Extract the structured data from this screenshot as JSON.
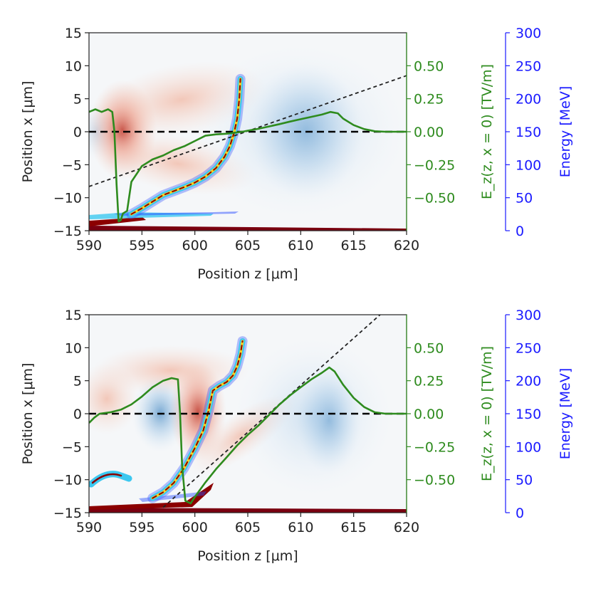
{
  "colors": {
    "green": "#2e8b1e",
    "blue": "#1a1aff",
    "black": "#000000",
    "field_red": "#e8755a",
    "field_blue": "#6fa8d6",
    "beam_red": "#8b0000",
    "beam_cyan": "#3cc8f0"
  },
  "chart_data": [
    {
      "type": "line",
      "panel": "top",
      "xlabel": "Position z [μm]",
      "ylabel": "Position x [μm]",
      "ylabel2": "E_z(z, x = 0) [TV/m]",
      "ylabel3": "Energy [MeV]",
      "xlim": [
        590,
        620
      ],
      "ylim": [
        -15,
        15
      ],
      "y2lim": [
        -0.75,
        0.75
      ],
      "y3lim": [
        0,
        300
      ],
      "xticks": [
        "590",
        "595",
        "600",
        "605",
        "610",
        "615",
        "620"
      ],
      "yticks": [
        "15",
        "10",
        "5",
        "0",
        "−5",
        "−10",
        "−15"
      ],
      "y2ticks": [
        "0.50",
        "0.25",
        "0.00",
        "−0.25",
        "−0.50"
      ],
      "y3ticks": [
        "300",
        "250",
        "200",
        "150",
        "100",
        "50",
        "0"
      ],
      "series": [
        {
          "name": "E_z(z, x=0)",
          "axis": "y2",
          "x": [
            590,
            590.6,
            591.2,
            591.8,
            592.2,
            592.4,
            592.6,
            592.8,
            593,
            593.2,
            593.6,
            594,
            595,
            596,
            597,
            598,
            599,
            600,
            601,
            602,
            603,
            604,
            604.5,
            605,
            606,
            607,
            608,
            609,
            610,
            611,
            612,
            612.8,
            613.5,
            614,
            615,
            616,
            617,
            618,
            619,
            620
          ],
          "values": [
            0.15,
            0.17,
            0.15,
            0.17,
            0.15,
            0.0,
            -0.4,
            -0.68,
            -0.67,
            -0.62,
            -0.6,
            -0.38,
            -0.26,
            -0.21,
            -0.18,
            -0.14,
            -0.11,
            -0.07,
            -0.03,
            -0.02,
            -0.015,
            -0.005,
            0.0,
            0.008,
            0.022,
            0.04,
            0.058,
            0.077,
            0.095,
            0.113,
            0.13,
            0.15,
            0.14,
            0.1,
            0.05,
            0.02,
            0.004,
            0.0,
            0.0,
            0.0
          ]
        },
        {
          "name": "energy spectrum spine",
          "axis": "y",
          "x": [
            594,
            595,
            596,
            597,
            598,
            599,
            600,
            601,
            602,
            602.8,
            603.3,
            603.7,
            604,
            604.2,
            604.3
          ],
          "values": [
            -12.5,
            -11.6,
            -10.6,
            -9.6,
            -9.0,
            -8.4,
            -7.7,
            -6.8,
            -5.5,
            -3.8,
            -2.2,
            -0.2,
            2.0,
            5.0,
            8.0
          ]
        },
        {
          "name": "dashed reference",
          "axis": "y",
          "x": [
            590,
            620
          ],
          "values": [
            -8.3,
            8.5
          ]
        }
      ]
    },
    {
      "type": "line",
      "panel": "bottom",
      "xlabel": "Position z [μm]",
      "ylabel": "Position x [μm]",
      "ylabel2": "E_z(z, x = 0) [TV/m]",
      "ylabel3": "Energy [MeV]",
      "xlim": [
        590,
        620
      ],
      "ylim": [
        -15,
        15
      ],
      "y2lim": [
        -0.75,
        0.75
      ],
      "y3lim": [
        0,
        300
      ],
      "xticks": [
        "590",
        "595",
        "600",
        "605",
        "610",
        "615",
        "620"
      ],
      "yticks": [
        "15",
        "10",
        "5",
        "0",
        "−5",
        "−10",
        "−15"
      ],
      "y2ticks": [
        "0.50",
        "0.25",
        "0.00",
        "−0.25",
        "−0.50"
      ],
      "y3ticks": [
        "300",
        "250",
        "200",
        "150",
        "100",
        "50",
        "0"
      ],
      "series": [
        {
          "name": "E_z(z, x=0)",
          "axis": "y2",
          "x": [
            590,
            590.5,
            591,
            592,
            593,
            594,
            595,
            596,
            597,
            597.8,
            598.4,
            598.6,
            598.8,
            599.1,
            599.6,
            600,
            601,
            602,
            603,
            604,
            605,
            606,
            607,
            608,
            609,
            610,
            611,
            612,
            612.7,
            613.2,
            614,
            615,
            616,
            617,
            618,
            619,
            620
          ],
          "values": [
            -0.07,
            -0.03,
            0.0,
            0.01,
            0.03,
            0.07,
            0.13,
            0.2,
            0.25,
            0.27,
            0.26,
            0.0,
            -0.4,
            -0.66,
            -0.68,
            -0.63,
            -0.52,
            -0.42,
            -0.33,
            -0.24,
            -0.16,
            -0.09,
            -0.01,
            0.07,
            0.14,
            0.2,
            0.26,
            0.31,
            0.35,
            0.32,
            0.22,
            0.12,
            0.05,
            0.01,
            0.0,
            0.0,
            0.0
          ]
        },
        {
          "name": "energy spectrum spine",
          "axis": "y",
          "x": [
            596,
            597,
            598,
            599,
            600,
            600.8,
            601.3,
            601.7,
            602.3,
            603,
            603.6,
            604,
            604.3,
            604.5
          ],
          "values": [
            -12.8,
            -11.9,
            -10.5,
            -8.2,
            -5.2,
            -2.5,
            0.5,
            3.5,
            4.2,
            4.8,
            5.8,
            7.2,
            9.0,
            11.0
          ]
        },
        {
          "name": "dashed reference",
          "axis": "y",
          "x": [
            597,
            617.5
          ],
          "values": [
            -14.2,
            15
          ]
        }
      ]
    }
  ]
}
